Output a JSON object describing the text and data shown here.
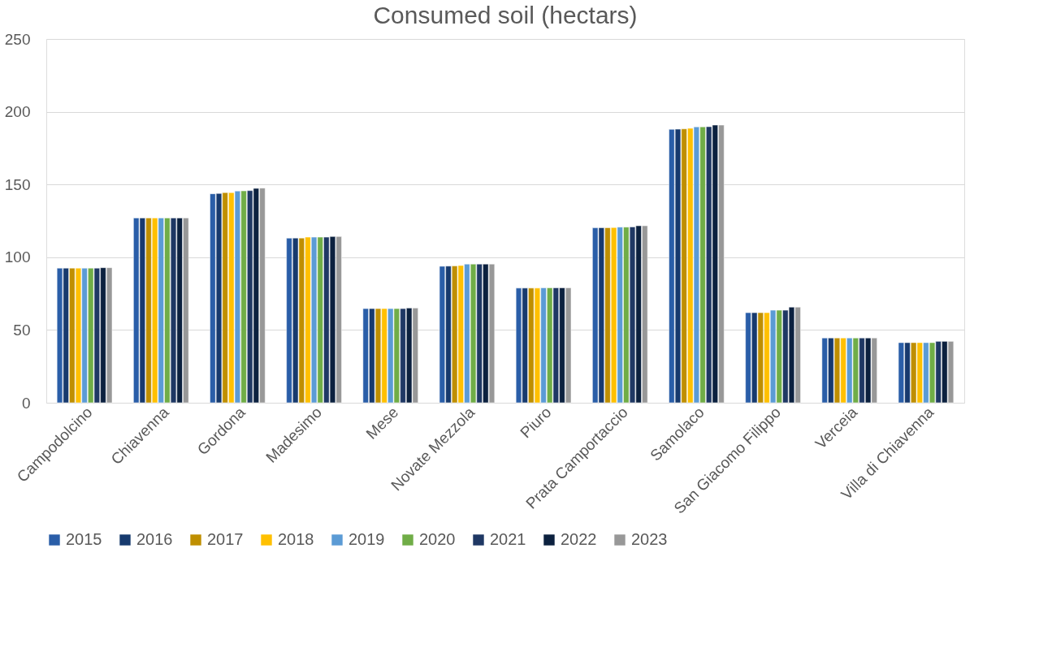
{
  "chart_data": {
    "type": "bar",
    "title": "Consumed soil (hectars)",
    "categories": [
      "Campodolcino",
      "Chiavenna",
      "Gordona",
      "Madesimo",
      "Mese",
      "Novate Mezzola",
      "Piuro",
      "Prata Camportaccio",
      "Samolaco",
      "San Giacomo Filippo",
      "Verceia",
      "Villa di Chiavenna"
    ],
    "series": [
      {
        "name": "2015",
        "color": "#2a5ea8",
        "values": [
          92.5,
          127,
          143.6,
          113.1,
          64.7,
          93.8,
          78.8,
          120.2,
          187.9,
          61.9,
          44.5,
          41.3
        ]
      },
      {
        "name": "2016",
        "color": "#173a6e",
        "values": [
          92.5,
          127,
          143.8,
          113.2,
          64.7,
          93.9,
          78.8,
          120.3,
          188.0,
          61.9,
          44.5,
          41.3
        ]
      },
      {
        "name": "2017",
        "color": "#bf8f00",
        "values": [
          92.5,
          127,
          144.4,
          113.2,
          64.7,
          94.0,
          78.8,
          120.3,
          188.2,
          61.9,
          44.5,
          41.3
        ]
      },
      {
        "name": "2018",
        "color": "#ffc000",
        "values": [
          92.5,
          127,
          144.4,
          113.8,
          64.7,
          94.3,
          78.8,
          120.4,
          188.6,
          61.9,
          44.5,
          41.3
        ]
      },
      {
        "name": "2019",
        "color": "#5b9bd5",
        "values": [
          92.5,
          127,
          145.5,
          113.8,
          64.7,
          95.3,
          79.0,
          120.7,
          189.6,
          63.6,
          44.5,
          41.3
        ]
      },
      {
        "name": "2020",
        "color": "#70ad47",
        "values": [
          92.5,
          127,
          145.6,
          113.8,
          64.7,
          95.3,
          79.0,
          120.7,
          189.6,
          63.6,
          44.5,
          41.3
        ]
      },
      {
        "name": "2021",
        "color": "#1f3864",
        "values": [
          92.5,
          127,
          145.8,
          113.8,
          64.7,
          95.3,
          79.0,
          120.8,
          189.7,
          63.6,
          44.5,
          42.2
        ]
      },
      {
        "name": "2022",
        "color": "#0c213f",
        "values": [
          92.8,
          127,
          147.3,
          114.2,
          65.1,
          95.3,
          79.0,
          121.6,
          190.8,
          65.7,
          44.5,
          42.2
        ]
      },
      {
        "name": "2023",
        "color": "#989898",
        "values": [
          92.8,
          127,
          147.5,
          114.2,
          65.1,
          95.3,
          79.0,
          121.6,
          190.8,
          65.7,
          44.5,
          42.2
        ]
      }
    ],
    "ylim": [
      0,
      250
    ],
    "yticks": [
      0,
      50,
      100,
      150,
      200,
      250
    ],
    "grid": "y",
    "legend": "bottom"
  }
}
